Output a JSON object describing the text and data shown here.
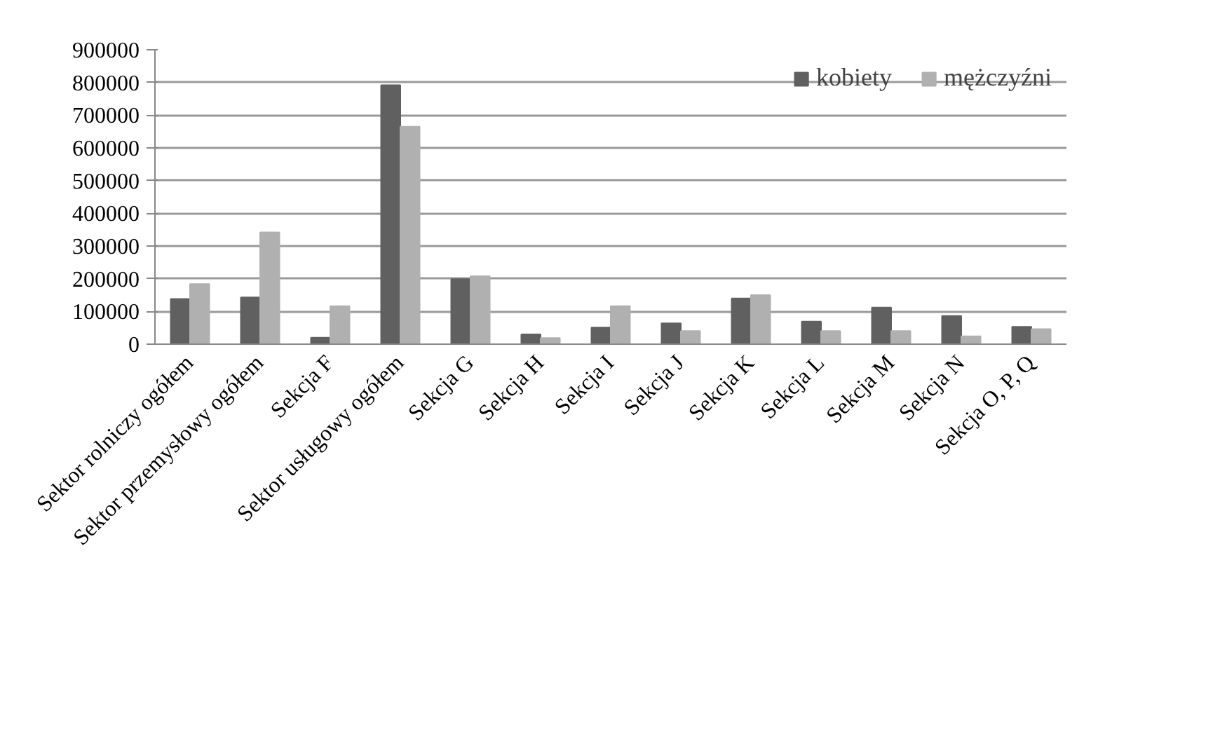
{
  "chart_data": {
    "type": "bar",
    "categories": [
      "Sektor rolniczy ogółem",
      "Sektor przemysłowy ogółem",
      "Sekcja F",
      "Sektor usługowy ogółem",
      "Sekcja G",
      "Sekcja H",
      "Sekcja I",
      "Sekcja J",
      "Sekcja K",
      "Sekcja L",
      "Sekcja M",
      "Sekcja N",
      "Sekcja O, P, Q"
    ],
    "series": [
      {
        "name": "kobiety",
        "color": "#606060",
        "values": [
          138000,
          143000,
          20000,
          792000,
          199000,
          30000,
          51000,
          64000,
          140000,
          69000,
          112000,
          86000,
          53000
        ]
      },
      {
        "name": "mężczyźni",
        "color": "#b0b0b0",
        "values": [
          184000,
          342000,
          116000,
          665000,
          208000,
          19000,
          116000,
          40000,
          150000,
          40000,
          40000,
          24000,
          46000
        ]
      }
    ],
    "ylim": [
      0,
      900000
    ],
    "yticks": [
      0,
      100000,
      200000,
      300000,
      400000,
      500000,
      600000,
      700000,
      800000,
      900000
    ],
    "grid": "y",
    "legend": "top right"
  }
}
